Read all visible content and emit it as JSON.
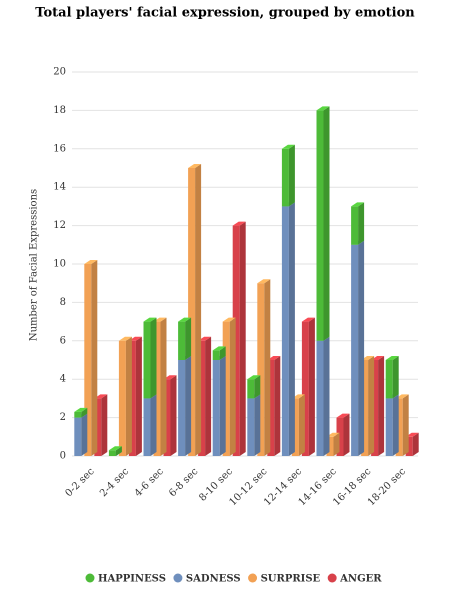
{
  "chart_data": {
    "type": "bar3d",
    "title": "Total players' facial expression, grouped by emotion",
    "y_label": "Number of Facial Expressions",
    "categories": [
      "0-2 sec",
      "2-4 sec",
      "4-6 sec",
      "6-8 sec",
      "8-10 sec",
      "10-12 sec",
      "12-14 sec",
      "14-16 sec",
      "16-18 sec",
      "18-20 sec"
    ],
    "series": [
      {
        "name": "HAPPINESS",
        "color": "#4dbb38",
        "stack": "a",
        "values": [
          0.3,
          0.3,
          4,
          2,
          0.5,
          1,
          3,
          12,
          2,
          2
        ]
      },
      {
        "name": "SADNESS",
        "color": "#6f8fbd",
        "stack": "a",
        "values": [
          2,
          0,
          3,
          5,
          5,
          3,
          13,
          6,
          11,
          3
        ]
      },
      {
        "name": "SURPRISE",
        "color": "#f2a154",
        "stack": "b",
        "values": [
          10,
          6,
          7,
          15,
          7,
          9,
          3,
          1,
          5,
          3
        ]
      },
      {
        "name": "ANGER",
        "color": "#d8414a",
        "stack": "c",
        "values": [
          3,
          6,
          4,
          6,
          12,
          5,
          7,
          2,
          5,
          1
        ]
      }
    ],
    "ylim": [
      0,
      20
    ],
    "yticks": [
      0,
      2,
      4,
      6,
      8,
      10,
      12,
      14,
      16,
      18,
      20
    ],
    "grid": true,
    "legend": "bottom"
  }
}
